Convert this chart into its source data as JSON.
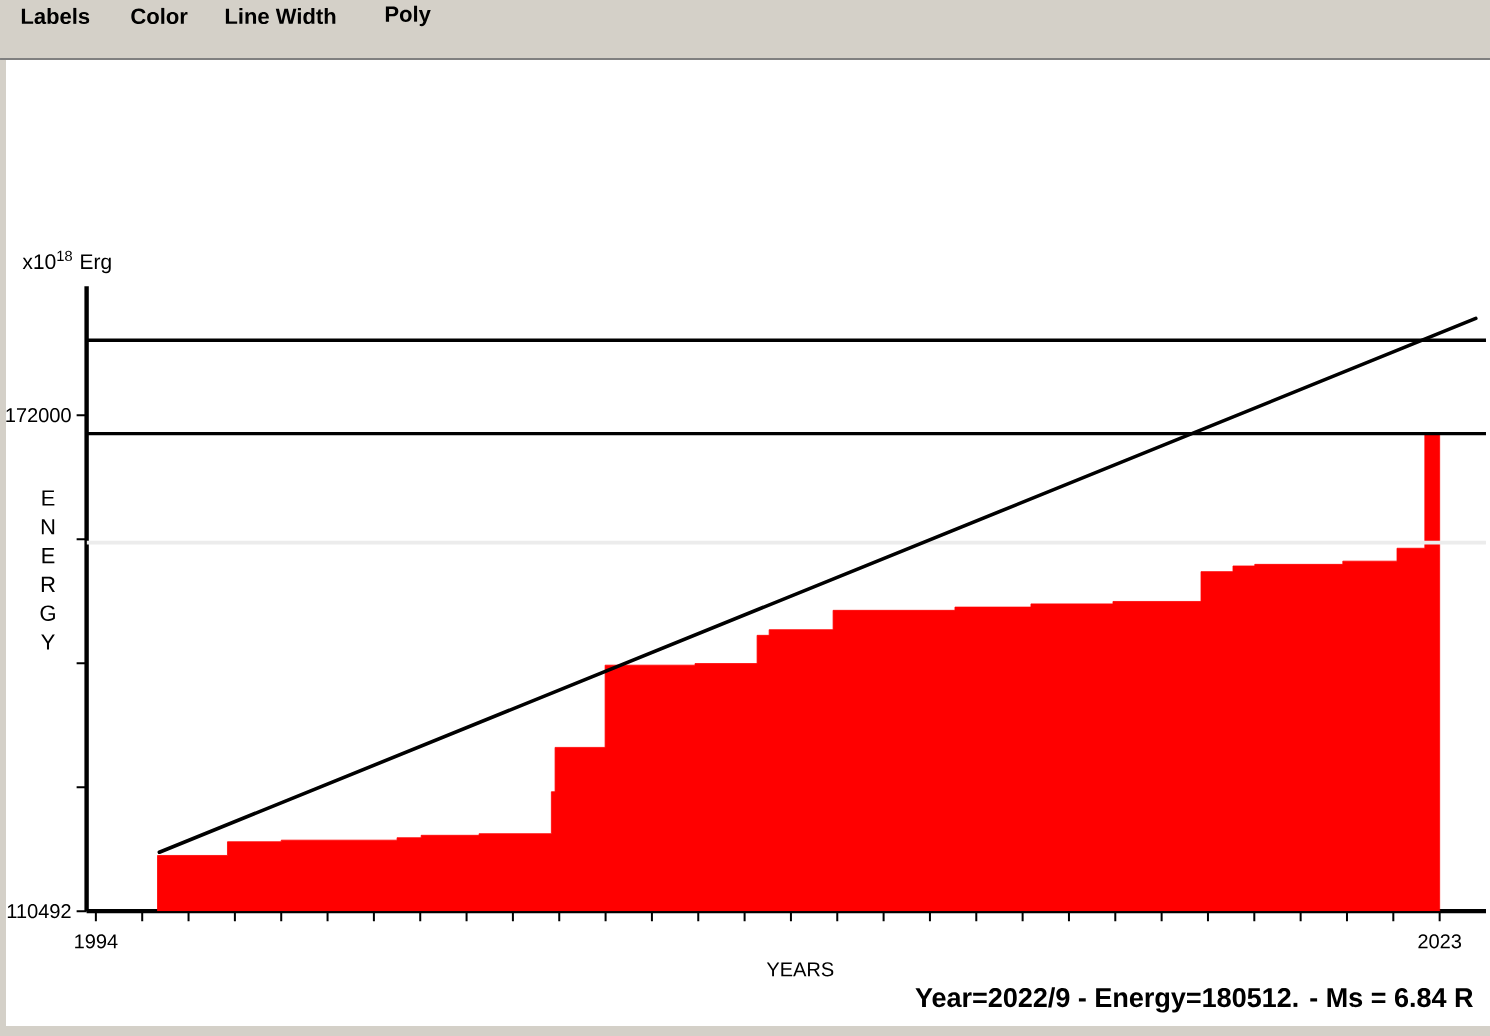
{
  "chart_data": {
    "type": "area",
    "xlabel": "YEARS",
    "ylabel": "ENERGY",
    "annotations": [
      "Labels",
      "Color",
      "Line Width",
      "Poly",
      "x10$^{18}$ Erg",
      "Year=2022/9 - Energy=180512. - Ms = 6.84 R"
    ],
    "xlim": [
      1993.8,
      2024
    ],
    "xticks": [
      1994,
      {
        "value": 1995,
        "label": null
      },
      {
        "value": 1996,
        "label": null
      },
      {
        "value": 1997,
        "label": null
      },
      {
        "value": 1998,
        "label": null
      },
      {
        "value": 1999,
        "label": null
      },
      {
        "value": 2000,
        "label": null
      },
      {
        "value": 2001,
        "label": null
      },
      {
        "value": 2002,
        "label": null
      },
      {
        "value": 2003,
        "label": null
      },
      {
        "value": 2004,
        "label": null
      },
      {
        "value": 2005,
        "label": null
      },
      {
        "value": 2006,
        "label": null
      },
      {
        "value": 2007,
        "label": null
      },
      {
        "value": 2008,
        "label": null
      },
      {
        "value": 2009,
        "label": null
      },
      {
        "value": 2010,
        "label": null
      },
      {
        "value": 2011,
        "label": null
      },
      {
        "value": 2012,
        "label": null
      },
      {
        "value": 2013,
        "label": null
      },
      {
        "value": 2014,
        "label": null
      },
      {
        "value": 2015,
        "label": null
      },
      {
        "value": 2016,
        "label": null
      },
      {
        "value": 2017,
        "label": null
      },
      {
        "value": 2018,
        "label": null
      },
      {
        "value": 2019,
        "label": null
      },
      {
        "value": 2020,
        "label": null
      },
      {
        "value": 2021,
        "label": null
      },
      {
        "value": 2022,
        "label": null
      },
      2023
    ],
    "ylim": [
      110492,
      188000
    ],
    "yticks": [
      110492,
      {
        "value": 125869,
        "label": null
      },
      {
        "value": 141246,
        "label": null
      },
      {
        "value": 156623,
        "label": null
      },
      172000
    ],
    "series": [
      {
        "color": "#ff0000",
        "x": [
          1995.33,
          1996.84,
          1996.84,
          1998.0,
          1998.0,
          2000.5,
          2000.5,
          2001.02,
          2001.02,
          2002.27,
          2002.27,
          2003.83,
          2003.83,
          2003.91,
          2003.91,
          2004.99,
          2004.99,
          2006.93,
          2006.93,
          2008.27,
          2008.27,
          2008.53,
          2008.53,
          2009.91,
          2009.91,
          2012.54,
          2012.54,
          2014.18,
          2014.18,
          2015.95,
          2015.95,
          2017.85,
          2017.85,
          2018.54,
          2018.54,
          2019.01,
          2019.01,
          2020.91,
          2020.91,
          2022.08,
          2022.08,
          2022.68,
          2022.68,
          2023.0
        ],
        "values": [
          117400,
          117400,
          119100,
          119100,
          119300,
          119300,
          119600,
          119600,
          119900,
          119900,
          120100,
          120100,
          125300,
          125300,
          130800,
          130800,
          141000,
          141000,
          141200,
          141200,
          144700,
          144700,
          145400,
          145400,
          147800,
          147800,
          148200,
          148200,
          148600,
          148600,
          148900,
          148900,
          152600,
          152600,
          153300,
          153300,
          153500,
          153500,
          153900,
          153900,
          155500,
          155500,
          169700,
          169700
        ]
      },
      {
        "type": "line",
        "color": "#000000",
        "x": [
          1995.37,
          2023.78
        ],
        "values": [
          117800,
          184000
        ]
      }
    ],
    "ref_lines": [
      {
        "axis": "y",
        "value": 156200,
        "color": "#ececec"
      },
      {
        "axis": "y",
        "value": 169700,
        "color": "#000000"
      },
      {
        "axis": "y",
        "value": 181300,
        "color": "#000000"
      }
    ]
  }
}
